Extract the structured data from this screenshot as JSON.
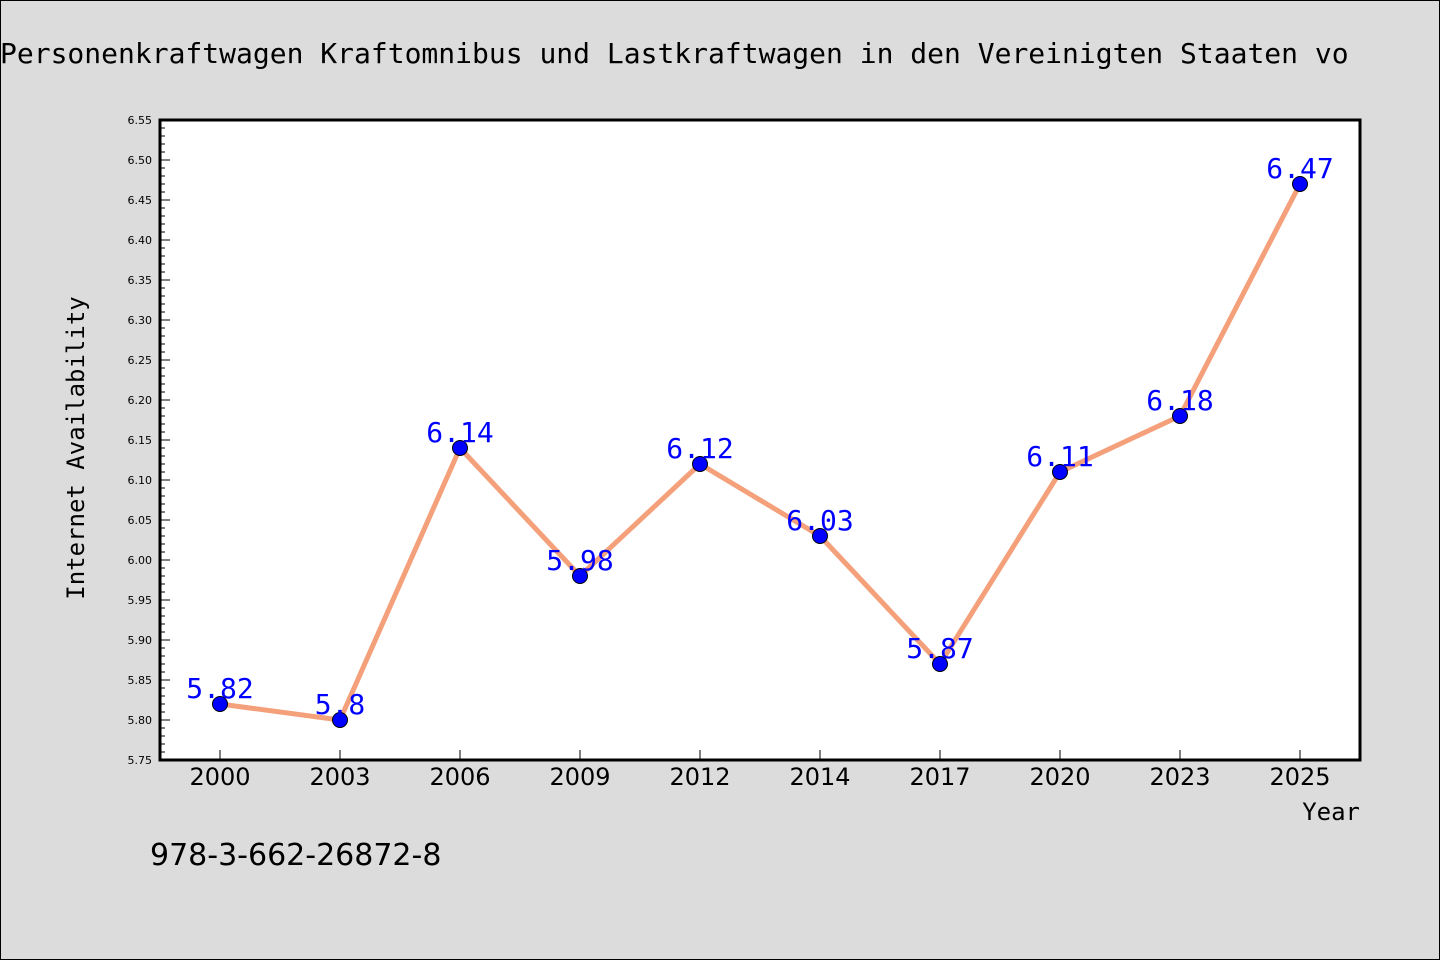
{
  "chart_data": {
    "type": "line",
    "title": "Personenkraftwagen Kraftomnibus und Lastkraftwagen in den Vereinigten Staaten vo",
    "xlabel": "Year",
    "ylabel": "Internet Availability",
    "categories": [
      "2000",
      "2003",
      "2006",
      "2009",
      "2012",
      "2014",
      "2017",
      "2020",
      "2023",
      "2025"
    ],
    "series": [
      {
        "values": [
          5.82,
          5.8,
          6.14,
          5.98,
          6.12,
          6.03,
          5.87,
          6.11,
          6.18,
          6.47
        ],
        "data_labels": [
          "5.82",
          "5.8",
          "6.14",
          "5.98",
          "6.12",
          "6.03",
          "5.87",
          "6.11",
          "6.18",
          "6.47"
        ],
        "line_color": "#f4a07a",
        "marker_color": "#0000ff",
        "label_color": "#0000ff"
      }
    ],
    "ylim": [
      5.75,
      6.55
    ],
    "yticks": [
      "5.75",
      "5.80",
      "5.85",
      "5.90",
      "5.95",
      "6.00",
      "6.05",
      "6.10",
      "6.15",
      "6.20",
      "6.25",
      "6.30",
      "6.35",
      "6.40",
      "6.45",
      "6.50",
      "6.55"
    ],
    "grid": false,
    "legend": "none"
  },
  "footer": {
    "isbn": "978-3-662-26872-8"
  },
  "colors": {
    "background": "#dcdcdc",
    "plot_background": "#ffffff"
  }
}
